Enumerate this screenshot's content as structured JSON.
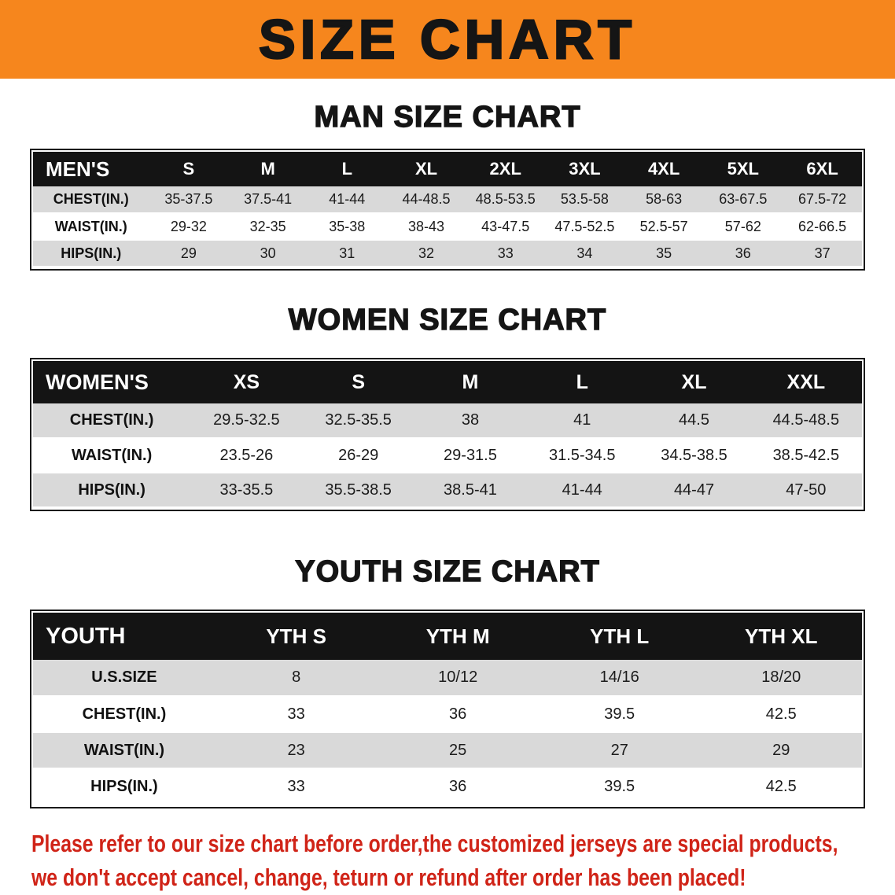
{
  "banner": {
    "title": "SIZE CHART"
  },
  "sections": [
    {
      "title": "MAN SIZE CHART",
      "corner": "MEN'S",
      "sizes": [
        "S",
        "M",
        "L",
        "XL",
        "2XL",
        "3XL",
        "4XL",
        "5XL",
        "6XL"
      ],
      "rows": [
        {
          "label": "CHEST(IN.)",
          "values": [
            "35-37.5",
            "37.5-41",
            "41-44",
            "44-48.5",
            "48.5-53.5",
            "53.5-58",
            "58-63",
            "63-67.5",
            "67.5-72"
          ]
        },
        {
          "label": "WAIST(IN.)",
          "values": [
            "29-32",
            "32-35",
            "35-38",
            "38-43",
            "43-47.5",
            "47.5-52.5",
            "52.5-57",
            "57-62",
            "62-66.5"
          ]
        },
        {
          "label": "HIPS(IN.)",
          "values": [
            "29",
            "30",
            "31",
            "32",
            "33",
            "34",
            "35",
            "36",
            "37"
          ]
        }
      ]
    },
    {
      "title": "WOMEN SIZE CHART",
      "corner": "WOMEN'S",
      "sizes": [
        "XS",
        "S",
        "M",
        "L",
        "XL",
        "XXL"
      ],
      "rows": [
        {
          "label": "CHEST(IN.)",
          "values": [
            "29.5-32.5",
            "32.5-35.5",
            "38",
            "41",
            "44.5",
            "44.5-48.5"
          ]
        },
        {
          "label": "WAIST(IN.)",
          "values": [
            "23.5-26",
            "26-29",
            "29-31.5",
            "31.5-34.5",
            "34.5-38.5",
            "38.5-42.5"
          ]
        },
        {
          "label": "HIPS(IN.)",
          "values": [
            "33-35.5",
            "35.5-38.5",
            "38.5-41",
            "41-44",
            "44-47",
            "47-50"
          ]
        }
      ]
    },
    {
      "title": "YOUTH SIZE CHART",
      "corner": "YOUTH",
      "sizes": [
        "YTH S",
        "YTH M",
        "YTH L",
        "YTH XL"
      ],
      "rows": [
        {
          "label": "U.S.SIZE",
          "values": [
            "8",
            "10/12",
            "14/16",
            "18/20"
          ]
        },
        {
          "label": "CHEST(IN.)",
          "values": [
            "33",
            "36",
            "39.5",
            "42.5"
          ]
        },
        {
          "label": "WAIST(IN.)",
          "values": [
            "23",
            "25",
            "27",
            "29"
          ]
        },
        {
          "label": "HIPS(IN.)",
          "values": [
            "33",
            "36",
            "39.5",
            "42.5"
          ]
        }
      ]
    }
  ],
  "disclaimer": {
    "line1": "Please refer to our size chart before order,the customized jerseys are special products,",
    "line2": "we don't accept cancel, change, teturn or refund after order has been placed!"
  },
  "colors": {
    "banner_bg": "#f6861d",
    "header_bg": "#141414",
    "row_alt_bg": "#d9d9d9",
    "disclaimer_red": "#d02418"
  }
}
